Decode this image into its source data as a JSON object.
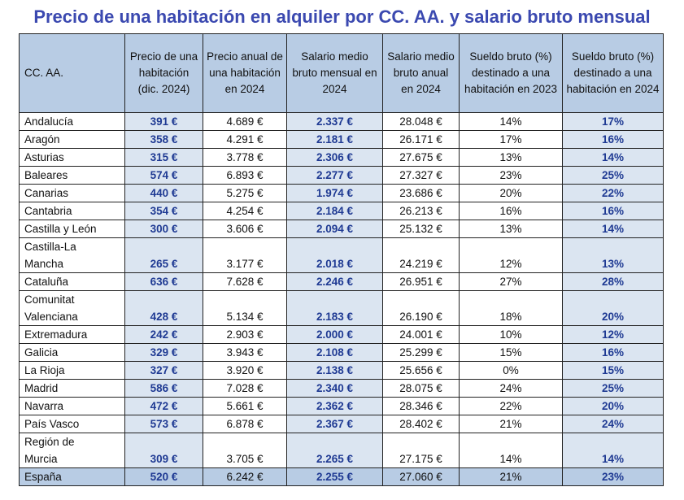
{
  "title": "Precio de una habitación en alquiler por CC. AA. y salario bruto mensual",
  "headers": {
    "ccaa": "CC. AA.",
    "precio": "Precio de una habitación (dic. 2024)",
    "anual": "Precio anual de una habitación en 2024",
    "salario_mensual": "Salario medio bruto mensual en 2024",
    "salario_anual": "Salario medio bruto anual en 2024",
    "pct23": "Sueldo bruto (%) destinado a una habitación en 2023",
    "pct24": "Sueldo bruto (%) destinado a una habitación en 2024"
  },
  "rows": [
    {
      "ccaa": "Andalucía",
      "precio": "391 €",
      "anual": "4.689 €",
      "salario_mensual": "2.337 €",
      "salario_anual": "28.048 €",
      "pct23": "14%",
      "pct24": "17%"
    },
    {
      "ccaa": "Aragón",
      "precio": "358 €",
      "anual": "4.291 €",
      "salario_mensual": "2.181 €",
      "salario_anual": "26.171 €",
      "pct23": "17%",
      "pct24": "16%"
    },
    {
      "ccaa": "Asturias",
      "precio": "315 €",
      "anual": "3.778 €",
      "salario_mensual": "2.306 €",
      "salario_anual": "27.675 €",
      "pct23": "13%",
      "pct24": "14%"
    },
    {
      "ccaa": "Baleares",
      "precio": "574 €",
      "anual": "6.893 €",
      "salario_mensual": "2.277 €",
      "salario_anual": "27.327 €",
      "pct23": "23%",
      "pct24": "25%"
    },
    {
      "ccaa": "Canarias",
      "precio": "440 €",
      "anual": "5.275 €",
      "salario_mensual": "1.974 €",
      "salario_anual": "23.686 €",
      "pct23": "20%",
      "pct24": "22%"
    },
    {
      "ccaa": "Cantabria",
      "precio": "354 €",
      "anual": "4.254 €",
      "salario_mensual": "2.184 €",
      "salario_anual": "26.213 €",
      "pct23": "16%",
      "pct24": "16%"
    },
    {
      "ccaa": "Castilla y León",
      "precio": "300 €",
      "anual": "3.606 €",
      "salario_mensual": "2.094 €",
      "salario_anual": "25.132 €",
      "pct23": "13%",
      "pct24": "14%"
    },
    {
      "ccaa": "Castilla-La Mancha",
      "precio": "265 €",
      "anual": "3.177 €",
      "salario_mensual": "2.018 €",
      "salario_anual": "24.219 €",
      "pct23": "12%",
      "pct24": "13%"
    },
    {
      "ccaa": "Cataluña",
      "precio": "636 €",
      "anual": "7.628 €",
      "salario_mensual": "2.246 €",
      "salario_anual": "26.951 €",
      "pct23": "27%",
      "pct24": "28%"
    },
    {
      "ccaa": "Comunitat Valenciana",
      "precio": "428 €",
      "anual": "5.134 €",
      "salario_mensual": "2.183 €",
      "salario_anual": "26.190 €",
      "pct23": "18%",
      "pct24": "20%"
    },
    {
      "ccaa": "Extremadura",
      "precio": "242 €",
      "anual": "2.903 €",
      "salario_mensual": "2.000 €",
      "salario_anual": "24.001 €",
      "pct23": "10%",
      "pct24": "12%"
    },
    {
      "ccaa": "Galicia",
      "precio": "329 €",
      "anual": "3.943 €",
      "salario_mensual": "2.108 €",
      "salario_anual": "25.299 €",
      "pct23": "15%",
      "pct24": "16%"
    },
    {
      "ccaa": "La Rioja",
      "precio": "327 €",
      "anual": "3.920 €",
      "salario_mensual": "2.138 €",
      "salario_anual": "25.656 €",
      "pct23": "0%",
      "pct24": "15%"
    },
    {
      "ccaa": "Madrid",
      "precio": "586 €",
      "anual": "7.028 €",
      "salario_mensual": "2.340 €",
      "salario_anual": "28.075 €",
      "pct23": "24%",
      "pct24": "25%"
    },
    {
      "ccaa": "Navarra",
      "precio": "472 €",
      "anual": "5.661 €",
      "salario_mensual": "2.362 €",
      "salario_anual": "28.346 €",
      "pct23": "22%",
      "pct24": "20%"
    },
    {
      "ccaa": "País Vasco",
      "precio": "573 €",
      "anual": "6.878 €",
      "salario_mensual": "2.367 €",
      "salario_anual": "28.402 €",
      "pct23": "21%",
      "pct24": "24%"
    },
    {
      "ccaa": "Región de Murcia",
      "precio": "309 €",
      "anual": "3.705 €",
      "salario_mensual": "2.265 €",
      "salario_anual": "27.175 €",
      "pct23": "14%",
      "pct24": "14%"
    },
    {
      "ccaa": "España",
      "precio": "520 €",
      "anual": "6.242 €",
      "salario_mensual": "2.255 €",
      "salario_anual": "27.060 €",
      "pct23": "21%",
      "pct24": "23%"
    }
  ],
  "colors": {
    "title": "#3b49b0",
    "header_bg": "#b8cce4",
    "highlight_bg": "#dbe5f1",
    "bold_value": "#1f3a93"
  }
}
